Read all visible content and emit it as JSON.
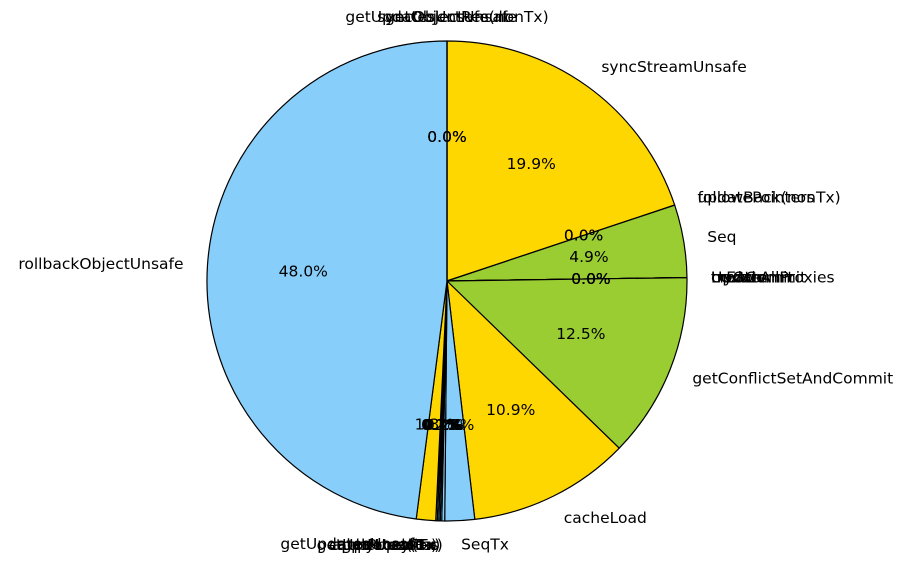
{
  "chart_data": {
    "type": "pie",
    "title": "",
    "start_angle_deg": 90,
    "direction": "clockwise",
    "colors": {
      "sky": "#87CEFA",
      "gold": "#FFD700",
      "green": "#9ACD32"
    },
    "slices": [
      {
        "label": "syncObjectUnsafe",
        "value": 0.0,
        "pct": "0.0%",
        "color": "#FFD700"
      },
      {
        "label": "syncStreamUnsafe",
        "value": 19.9,
        "pct": "19.9%",
        "color": "#FFD700"
      },
      {
        "label": "updatePointers",
        "value": 0.0,
        "pct": "0.0%",
        "color": "#FFD700"
      },
      {
        "label": "followBack(nonTx)",
        "value": 0.0,
        "pct": "0.0%",
        "color": "#FFD700"
      },
      {
        "label": "Seq",
        "value": 4.9,
        "pct": "4.9%",
        "color": "#9ACD32"
      },
      {
        "label": "nextCommit",
        "value": 0.0,
        "pct": "0.0%",
        "color": "#9ACD32"
      },
      {
        "label": "txEnd",
        "value": 0.0,
        "pct": "0.0%",
        "color": "#9ACD32"
      },
      {
        "label": "tryCommit",
        "value": 0.0,
        "pct": "0.0%",
        "color": "#9ACD32"
      },
      {
        "label": "Update",
        "value": 0.0,
        "pct": "0.0%",
        "color": "#9ACD32"
      },
      {
        "label": "createAllProxies",
        "value": 0.0,
        "pct": "0.0%",
        "color": "#9ACD32"
      },
      {
        "label": "getConflictSetAndCommit",
        "value": 12.5,
        "pct": "12.5%",
        "color": "#9ACD32"
      },
      {
        "label": "cacheLoad",
        "value": 10.9,
        "pct": "10.9%",
        "color": "#FFD700"
      },
      {
        "label": "SeqTx",
        "value": 2.0,
        "pct": "2.0%",
        "color": "#87CEFA"
      },
      {
        "label": "cacheLoad(Tx)",
        "value": 0.2,
        "pct": "0.2%",
        "color": "#87CEFA"
      },
      {
        "label": "getProxy(Tx)",
        "value": 0.1,
        "pct": "0.1%",
        "color": "#87CEFA"
      },
      {
        "label": "applyUpdates",
        "value": 0.1,
        "pct": "0.1%",
        "color": "#87CEFA"
      },
      {
        "label": "getUpdates(Tx)",
        "value": 0.1,
        "pct": "0.1%",
        "color": "#87CEFA"
      },
      {
        "label": "processTx",
        "value": 0.1,
        "pct": "0.1%",
        "color": "#87CEFA"
      },
      {
        "label": "getUpdatesUnsafe",
        "value": 1.3,
        "pct": "1.3%",
        "color": "#FFD700"
      },
      {
        "label": "rollbackObjectUnsafe",
        "value": 48.0,
        "pct": "48.0%",
        "color": "#87CEFA"
      },
      {
        "label": "getObjectResult",
        "value": 0.0,
        "pct": "0.0%",
        "color": "#87CEFA"
      },
      {
        "label": "getUpdatesUnsafe(nonTx)",
        "value": 0.0,
        "pct": "0.0%",
        "color": "#87CEFA"
      }
    ]
  }
}
